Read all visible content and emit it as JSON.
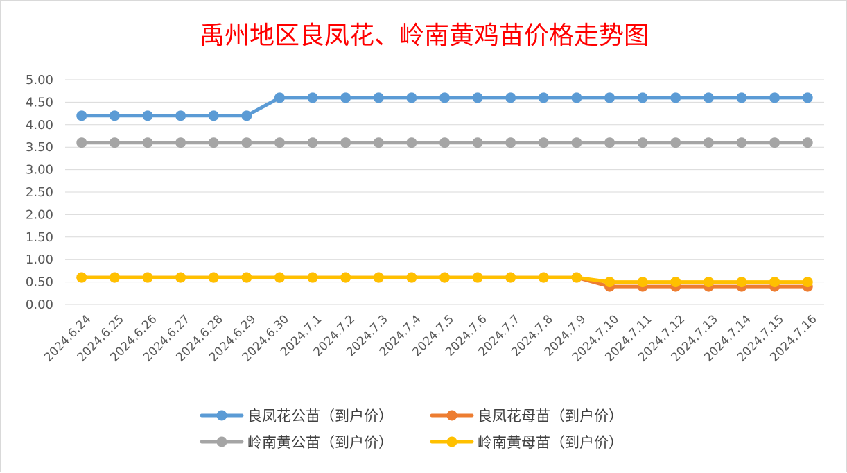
{
  "chart_data": {
    "type": "line",
    "title": "禹州地区良凤花、岭南黄鸡苗价格走势图",
    "xlabel": "",
    "ylabel": "",
    "ylim": [
      0,
      5
    ],
    "y_ticks": [
      "0.00",
      "0.50",
      "1.00",
      "1.50",
      "2.00",
      "2.50",
      "3.00",
      "3.50",
      "4.00",
      "4.50",
      "5.00"
    ],
    "grid": true,
    "legend_position": "bottom",
    "categories": [
      "2024.6.24",
      "2024.6.25",
      "2024.6.26",
      "2024.6.27",
      "2024.6.28",
      "2024.6.29",
      "2024.6.30",
      "2024.7.1",
      "2024.7.2",
      "2024.7.3",
      "2024.7.4",
      "2024.7.5",
      "2024.7.6",
      "2024.7.7",
      "2024.7.8",
      "2024.7.9",
      "2024.7.10",
      "2024.7.11",
      "2024.7.12",
      "2024.7.13",
      "2024.7.14",
      "2024.7.15",
      "2024.7.16"
    ],
    "series": [
      {
        "name": "良凤花公苗（到户价）",
        "color": "#5b9bd5",
        "values": [
          4.2,
          4.2,
          4.2,
          4.2,
          4.2,
          4.2,
          4.6,
          4.6,
          4.6,
          4.6,
          4.6,
          4.6,
          4.6,
          4.6,
          4.6,
          4.6,
          4.6,
          4.6,
          4.6,
          4.6,
          4.6,
          4.6,
          4.6
        ]
      },
      {
        "name": "良凤花母苗（到户价）",
        "color": "#ed7d31",
        "values": [
          0.6,
          0.6,
          0.6,
          0.6,
          0.6,
          0.6,
          0.6,
          0.6,
          0.6,
          0.6,
          0.6,
          0.6,
          0.6,
          0.6,
          0.6,
          0.6,
          0.4,
          0.4,
          0.4,
          0.4,
          0.4,
          0.4,
          0.4
        ]
      },
      {
        "name": "岭南黄公苗（到户价）",
        "color": "#a5a5a5",
        "values": [
          3.6,
          3.6,
          3.6,
          3.6,
          3.6,
          3.6,
          3.6,
          3.6,
          3.6,
          3.6,
          3.6,
          3.6,
          3.6,
          3.6,
          3.6,
          3.6,
          3.6,
          3.6,
          3.6,
          3.6,
          3.6,
          3.6,
          3.6
        ]
      },
      {
        "name": "岭南黄母苗（到户价）",
        "color": "#ffc000",
        "values": [
          0.6,
          0.6,
          0.6,
          0.6,
          0.6,
          0.6,
          0.6,
          0.6,
          0.6,
          0.6,
          0.6,
          0.6,
          0.6,
          0.6,
          0.6,
          0.6,
          0.5,
          0.5,
          0.5,
          0.5,
          0.5,
          0.5,
          0.5
        ]
      }
    ]
  }
}
